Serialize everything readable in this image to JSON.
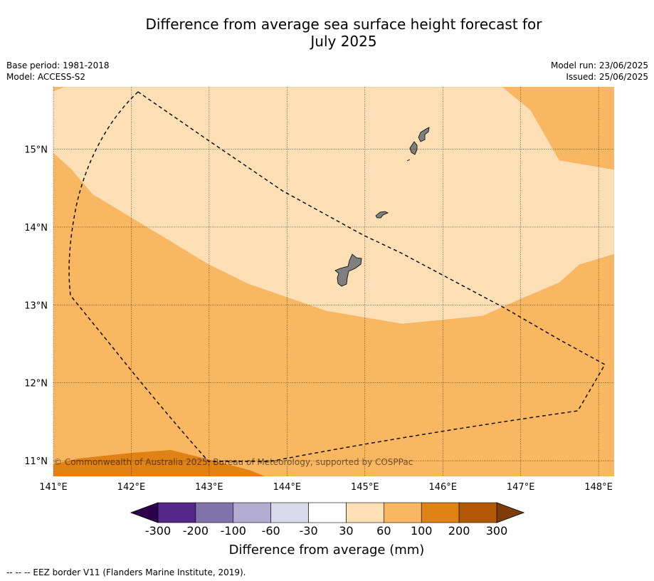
{
  "title_line1": "Difference from average sea surface height forecast for",
  "title_line2": "July 2025",
  "base_period": "Base period: 1981-2018",
  "model": "Model: ACCESS-S2",
  "model_run": "Model run: 23/06/2025",
  "issued": "Issued: 25/06/2025",
  "map": {
    "lon_range": [
      141,
      148.2
    ],
    "lat_range": [
      10.8,
      15.8
    ],
    "lon_ticks": [
      {
        "value": 141,
        "label": "141°E"
      },
      {
        "value": 142,
        "label": "142°E"
      },
      {
        "value": 143,
        "label": "143°E"
      },
      {
        "value": 144,
        "label": "144°E"
      },
      {
        "value": 145,
        "label": "145°E"
      },
      {
        "value": 146,
        "label": "146°E"
      },
      {
        "value": 147,
        "label": "147°E"
      },
      {
        "value": 148,
        "label": "148°E"
      }
    ],
    "lat_ticks": [
      {
        "value": 15,
        "label": "15°N"
      },
      {
        "value": 14,
        "label": "14°N"
      },
      {
        "value": 13,
        "label": "13°N"
      },
      {
        "value": 12,
        "label": "12°N"
      },
      {
        "value": 11,
        "label": "11°N"
      }
    ],
    "contour_regions": [
      {
        "range": "100 to 200",
        "color": "#e08214"
      },
      {
        "range": "60 to 100",
        "color": "#fab761"
      },
      {
        "range": "30 to 60",
        "color": "#fddfb5"
      }
    ],
    "land_color": "#7f7f7f",
    "copyright": "© Commonwealth of Australia 2025, Bureau of Meteorology, supported by COSPPac"
  },
  "colorbar": {
    "ticks": [
      "-300",
      "-200",
      "-100",
      "-60",
      "-30",
      "30",
      "60",
      "100",
      "200",
      "300"
    ],
    "colors": [
      "#542788",
      "#8073ac",
      "#b2abd2",
      "#d8daeb",
      "#ffffff",
      "#fddfb5",
      "#fab761",
      "#e08214",
      "#b35806"
    ],
    "under_color": "#2d004b",
    "over_color": "#7f3b08",
    "label": "Difference from average (mm)"
  },
  "footer": "--  --  -- EEZ border V11 (Flanders Marine Institute, 2019)."
}
